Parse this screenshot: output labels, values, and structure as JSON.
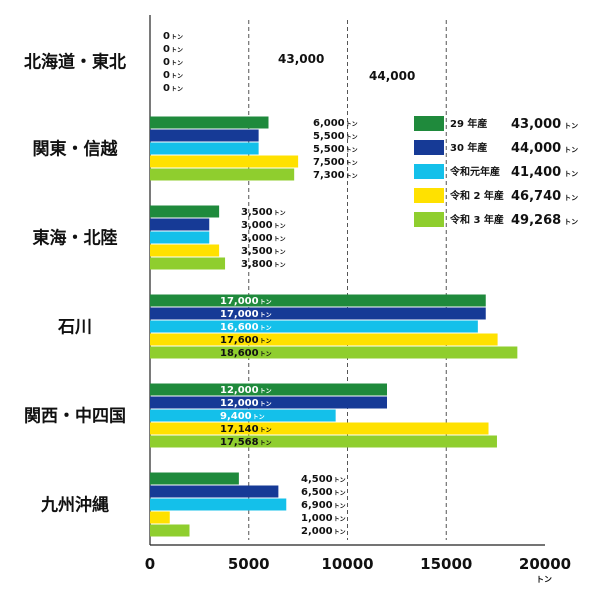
{
  "chart_data": {
    "type": "bar",
    "orientation": "horizontal",
    "title": "",
    "xlabel": "",
    "ylabel": "",
    "x_unit": "トン",
    "xlim": [
      0,
      20000
    ],
    "xticks": [
      0,
      5000,
      10000,
      15000,
      20000
    ],
    "xtick_labels": [
      "0",
      "5000",
      "10000",
      "15000",
      "20000"
    ],
    "grid": "vertical-dashed",
    "legend_position": "right",
    "value_unit": "トン",
    "categories": [
      "北海道・東北",
      "関東・信越",
      "東海・北陸",
      "石川",
      "関西・中四国",
      "九州沖縄"
    ],
    "series": [
      {
        "name": "29 年産",
        "color": "#1f8a3c",
        "values": [
          0,
          6000,
          3500,
          17000,
          12000,
          4500
        ],
        "labels": [
          "0",
          "6,000",
          "3,500",
          "17,000",
          "12,000",
          "4,500"
        ],
        "total": "43,000"
      },
      {
        "name": "30 年産",
        "color": "#163a96",
        "values": [
          0,
          5500,
          3000,
          17000,
          12000,
          6500
        ],
        "labels": [
          "0",
          "5,500",
          "3,000",
          "17,000",
          "12,000",
          "6,500"
        ],
        "total": "44,000"
      },
      {
        "name": "令和元年産",
        "color": "#14c0ea",
        "values": [
          0,
          5500,
          3000,
          16600,
          9400,
          6900
        ],
        "labels": [
          "0",
          "5,500",
          "3,000",
          "16,600",
          "9,400",
          "6,900"
        ],
        "total": "41,400"
      },
      {
        "name": "令和 2 年産",
        "color": "#ffe100",
        "values": [
          0,
          7500,
          3500,
          17600,
          17140,
          1000
        ],
        "labels": [
          "0",
          "7,500",
          "3,500",
          "17,600",
          "17,140",
          "1,000"
        ],
        "total": "46,740"
      },
      {
        "name": "令和 3 年産",
        "color": "#8fce2e",
        "values": [
          0,
          7300,
          3800,
          18600,
          17568,
          2000
        ],
        "labels": [
          "0",
          "7,300",
          "3,800",
          "18,600",
          "17,568",
          "2,000"
        ],
        "total": "49,268"
      }
    ],
    "annotations": [
      "43,000",
      "44,000"
    ]
  }
}
